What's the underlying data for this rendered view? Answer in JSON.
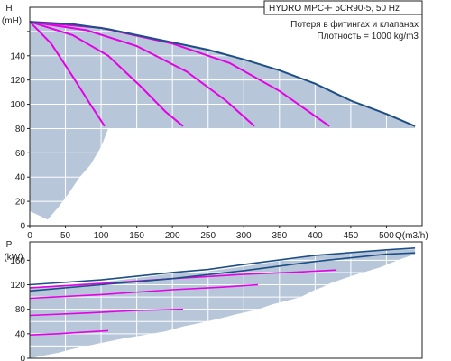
{
  "colors": {
    "envelope_fill": "#b7c7d9",
    "boundary": "#1d4f86",
    "curve": "#e600e6",
    "grid": "#ffffff",
    "axis": "#222222"
  },
  "chart_data": [
    {
      "type": "area",
      "id": "head",
      "xlim": [
        0,
        550
      ],
      "ylim": [
        0,
        180
      ],
      "xticks": [
        0,
        50,
        100,
        150,
        200,
        250,
        300,
        350,
        400,
        450,
        500
      ],
      "yticks": [
        0,
        20,
        40,
        60,
        80,
        100,
        120,
        140,
        160
      ],
      "ytick_labels": [
        "0",
        "20",
        "40",
        "60",
        "80",
        "100",
        "120",
        "140",
        ""
      ],
      "xlabel": "Q(m3/h)",
      "ylabel_top": "H",
      "ylabel_unit": "(mH)",
      "legend": {
        "title": "HYDRO MPC-F 5CR90-5, 50 Hz",
        "lines": [
          "Потеря в фитингах и клапанах",
          "Плотность = 1000 kg/m3"
        ]
      },
      "envelope": [
        [
          0,
          168
        ],
        [
          60,
          166
        ],
        [
          110,
          162
        ],
        [
          150,
          157
        ],
        [
          200,
          151
        ],
        [
          250,
          145
        ],
        [
          300,
          137
        ],
        [
          350,
          128
        ],
        [
          400,
          117
        ],
        [
          450,
          103
        ],
        [
          500,
          92
        ],
        [
          540,
          82
        ],
        [
          540,
          80
        ],
        [
          110,
          80
        ],
        [
          100,
          65
        ],
        [
          85,
          50
        ],
        [
          70,
          40
        ],
        [
          55,
          27
        ],
        [
          40,
          15
        ],
        [
          25,
          5
        ],
        [
          0,
          12
        ]
      ],
      "boundary": [
        [
          0,
          168
        ],
        [
          60,
          166
        ],
        [
          110,
          162
        ],
        [
          150,
          157
        ],
        [
          200,
          151
        ],
        [
          250,
          145
        ],
        [
          300,
          137
        ],
        [
          350,
          128
        ],
        [
          400,
          117
        ],
        [
          450,
          103
        ],
        [
          500,
          92
        ],
        [
          540,
          82
        ]
      ],
      "curves": [
        [
          [
            0,
            168
          ],
          [
            30,
            150
          ],
          [
            60,
            123
          ],
          [
            85,
            100
          ],
          [
            105,
            82
          ]
        ],
        [
          [
            0,
            168
          ],
          [
            60,
            157
          ],
          [
            110,
            140
          ],
          [
            155,
            115
          ],
          [
            190,
            94
          ],
          [
            215,
            82
          ]
        ],
        [
          [
            0,
            168
          ],
          [
            80,
            161
          ],
          [
            150,
            148
          ],
          [
            220,
            127
          ],
          [
            275,
            103
          ],
          [
            315,
            82
          ]
        ],
        [
          [
            0,
            168
          ],
          [
            100,
            163
          ],
          [
            200,
            150
          ],
          [
            280,
            134
          ],
          [
            350,
            111
          ],
          [
            420,
            82
          ]
        ]
      ]
    },
    {
      "type": "area",
      "id": "power",
      "xlim": [
        0,
        550
      ],
      "ylim": [
        0,
        190
      ],
      "yticks": [
        0,
        40,
        80,
        120,
        160
      ],
      "ytick_labels": [
        "0",
        "40",
        "80",
        "120",
        "160"
      ],
      "gridlines": [
        0,
        20,
        40,
        60,
        80,
        100,
        120,
        140,
        160,
        180
      ],
      "ylabel_top": "P",
      "ylabel_unit": "(kW)",
      "envelope": [
        [
          0,
          116
        ],
        [
          100,
          124
        ],
        [
          200,
          138
        ],
        [
          250,
          142
        ],
        [
          300,
          150
        ],
        [
          400,
          167
        ],
        [
          500,
          176
        ],
        [
          540,
          178
        ],
        [
          540,
          170
        ],
        [
          520,
          162
        ],
        [
          505,
          155
        ],
        [
          490,
          148
        ],
        [
          470,
          141
        ],
        [
          455,
          136
        ],
        [
          440,
          130
        ],
        [
          420,
          122
        ],
        [
          410,
          116
        ],
        [
          400,
          112
        ],
        [
          380,
          100
        ],
        [
          340,
          88
        ],
        [
          320,
          80
        ],
        [
          290,
          72
        ],
        [
          270,
          66
        ],
        [
          240,
          58
        ],
        [
          215,
          52
        ],
        [
          190,
          44
        ],
        [
          160,
          38
        ],
        [
          130,
          32
        ],
        [
          100,
          25
        ],
        [
          60,
          15
        ],
        [
          40,
          9
        ],
        [
          0,
          0
        ]
      ],
      "boundary_top": [
        [
          0,
          120
        ],
        [
          100,
          128
        ],
        [
          200,
          140
        ],
        [
          250,
          145
        ],
        [
          300,
          153
        ],
        [
          400,
          168
        ],
        [
          500,
          177
        ],
        [
          540,
          180
        ]
      ],
      "boundary_lower": [
        [
          0,
          110
        ],
        [
          100,
          120
        ],
        [
          200,
          130
        ],
        [
          300,
          143
        ],
        [
          400,
          158
        ],
        [
          500,
          170
        ],
        [
          540,
          172
        ]
      ],
      "curves": [
        [
          [
            0,
            38
          ],
          [
            40,
            40
          ],
          [
            80,
            43
          ],
          [
            110,
            45
          ]
        ],
        [
          [
            0,
            70
          ],
          [
            80,
            74
          ],
          [
            150,
            78
          ],
          [
            215,
            80
          ]
        ],
        [
          [
            0,
            98
          ],
          [
            100,
            104
          ],
          [
            200,
            112
          ],
          [
            270,
            116
          ],
          [
            320,
            120
          ]
        ],
        [
          [
            0,
            115
          ],
          [
            100,
            122
          ],
          [
            200,
            130
          ],
          [
            300,
            137
          ],
          [
            380,
            141
          ],
          [
            430,
            144
          ]
        ]
      ]
    }
  ]
}
